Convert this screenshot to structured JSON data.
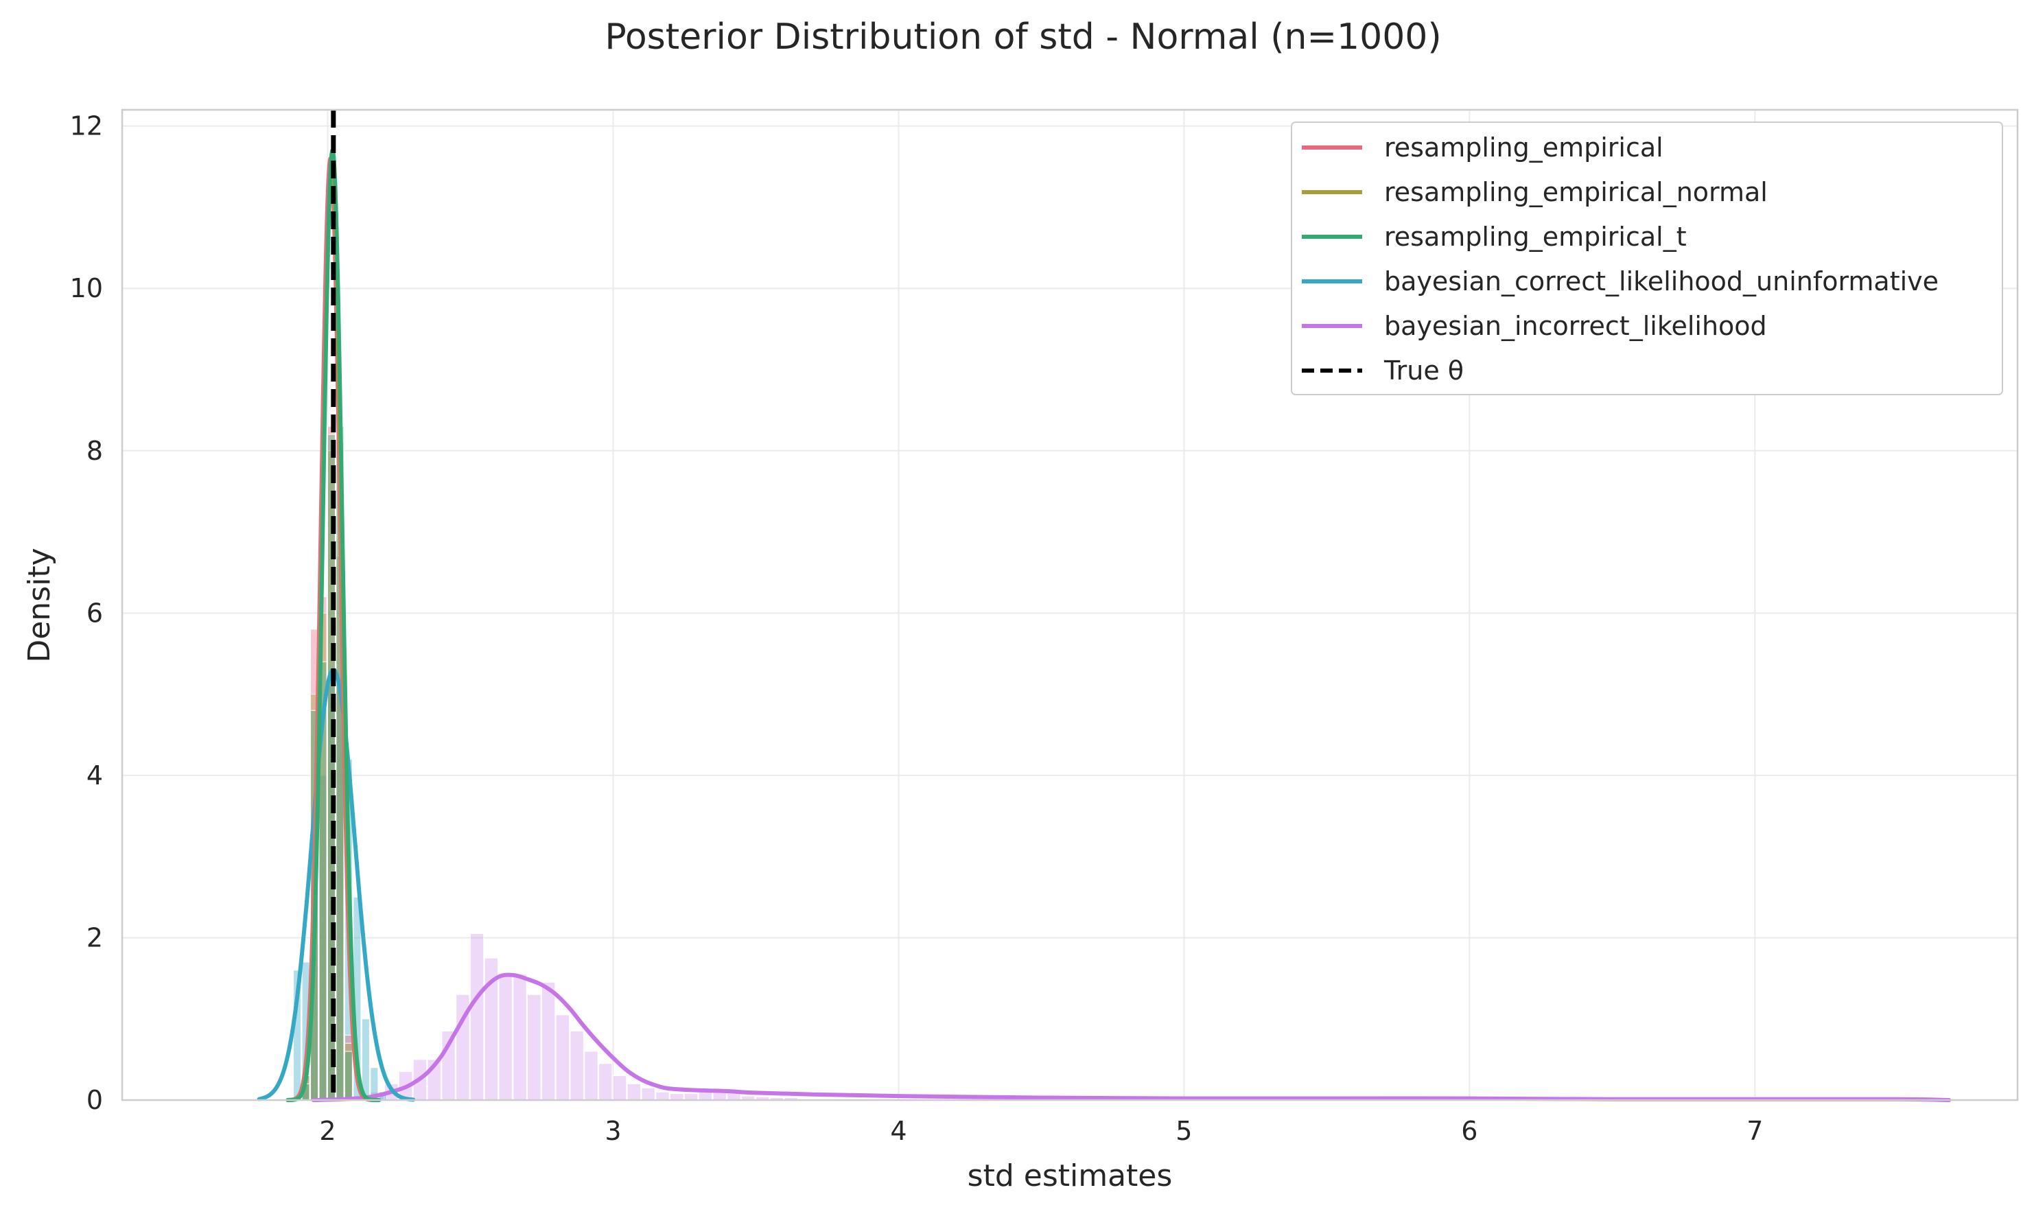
{
  "chart_data": {
    "type": "area",
    "title": "Posterior Distribution of std - Normal (n=1000)",
    "xlabel": "std estimates",
    "ylabel": "Density",
    "xlim": [
      1.28,
      7.92
    ],
    "ylim": [
      0,
      12.2
    ],
    "x_ticks": [
      2,
      3,
      4,
      5,
      6,
      7
    ],
    "y_ticks": [
      0,
      2,
      4,
      6,
      8,
      10,
      12
    ],
    "grid": true,
    "legend_position": "top-right",
    "true_value": 2.02,
    "series": [
      {
        "name": "resampling_empirical",
        "color": "#e8697f",
        "kde": {
          "type": "gaussian",
          "mean": 2.01,
          "sd": 0.034,
          "peak": 11.6,
          "range": [
            1.86,
            2.16
          ]
        },
        "histogram": {
          "bin_width": 0.03,
          "bins": [
            [
              1.91,
              0.3
            ],
            [
              1.94,
              5.8
            ],
            [
              1.97,
              6.2
            ],
            [
              2.0,
              8.3
            ],
            [
              2.03,
              6.7
            ],
            [
              2.06,
              0.8
            ]
          ]
        }
      },
      {
        "name": "resampling_empirical_normal",
        "color": "#a89d38",
        "kde": {
          "type": "gaussian",
          "mean": 2.015,
          "sd": 0.034,
          "peak": 11.5,
          "range": [
            1.86,
            2.17
          ]
        },
        "histogram": {
          "bin_width": 0.03,
          "bins": [
            [
              1.91,
              0.3
            ],
            [
              1.94,
              5.0
            ],
            [
              1.97,
              6.0
            ],
            [
              2.0,
              8.0
            ],
            [
              2.03,
              8.1
            ],
            [
              2.06,
              0.7
            ]
          ]
        }
      },
      {
        "name": "resampling_empirical_t",
        "color": "#33aa73",
        "kde": {
          "type": "gaussian",
          "mean": 2.017,
          "sd": 0.034,
          "peak": 11.7,
          "range": [
            1.86,
            2.18
          ]
        },
        "histogram": {
          "bin_width": 0.03,
          "bins": [
            [
              1.91,
              0.2
            ],
            [
              1.94,
              4.8
            ],
            [
              1.97,
              5.4
            ],
            [
              2.0,
              8.2
            ],
            [
              2.03,
              8.3
            ],
            [
              2.06,
              0.6
            ]
          ]
        }
      },
      {
        "name": "bayesian_correct_likelihood_uninformative",
        "color": "#35a8c6",
        "kde": {
          "type": "gaussian",
          "mean": 2.02,
          "sd": 0.075,
          "peak": 5.3,
          "range": [
            1.76,
            2.3
          ]
        },
        "histogram": {
          "bin_width": 0.03,
          "bins": [
            [
              1.88,
              1.6
            ],
            [
              1.91,
              1.7
            ],
            [
              1.94,
              2.6
            ],
            [
              1.97,
              4.0
            ],
            [
              2.0,
              5.1
            ],
            [
              2.03,
              5.2
            ],
            [
              2.06,
              4.2
            ],
            [
              2.09,
              2.5
            ],
            [
              2.12,
              1.0
            ],
            [
              2.15,
              0.4
            ],
            [
              2.18,
              0.1
            ]
          ]
        }
      },
      {
        "name": "bayesian_incorrect_likelihood",
        "color": "#c675e8",
        "kde": {
          "type": "points",
          "x": [
            1.95,
            2.05,
            2.15,
            2.25,
            2.3,
            2.35,
            2.4,
            2.45,
            2.5,
            2.55,
            2.6,
            2.65,
            2.7,
            2.75,
            2.8,
            2.85,
            2.9,
            2.95,
            3.0,
            3.05,
            3.1,
            3.15,
            3.2,
            3.3,
            3.4,
            3.5,
            3.7,
            4.0,
            4.5,
            5.0,
            5.5,
            6.0,
            6.5,
            7.0,
            7.5,
            7.68
          ],
          "y": [
            0.0,
            0.01,
            0.04,
            0.13,
            0.21,
            0.34,
            0.55,
            0.85,
            1.15,
            1.38,
            1.52,
            1.54,
            1.49,
            1.42,
            1.3,
            1.12,
            0.9,
            0.7,
            0.52,
            0.36,
            0.25,
            0.18,
            0.14,
            0.12,
            0.11,
            0.09,
            0.07,
            0.05,
            0.03,
            0.02,
            0.02,
            0.02,
            0.01,
            0.01,
            0.01,
            0.0
          ]
        },
        "histogram": {
          "bin_width": 0.05,
          "bins": [
            [
              2.15,
              0.1
            ],
            [
              2.2,
              0.2
            ],
            [
              2.25,
              0.35
            ],
            [
              2.3,
              0.5
            ],
            [
              2.35,
              0.5
            ],
            [
              2.4,
              0.85
            ],
            [
              2.45,
              1.3
            ],
            [
              2.5,
              2.05
            ],
            [
              2.55,
              1.75
            ],
            [
              2.6,
              1.55
            ],
            [
              2.65,
              1.55
            ],
            [
              2.7,
              1.3
            ],
            [
              2.75,
              1.45
            ],
            [
              2.8,
              1.05
            ],
            [
              2.85,
              0.85
            ],
            [
              2.9,
              0.6
            ],
            [
              2.95,
              0.45
            ],
            [
              3.0,
              0.3
            ],
            [
              3.05,
              0.2
            ],
            [
              3.1,
              0.15
            ],
            [
              3.15,
              0.1
            ],
            [
              3.2,
              0.08
            ],
            [
              3.25,
              0.08
            ],
            [
              3.3,
              0.1
            ],
            [
              3.35,
              0.1
            ],
            [
              3.4,
              0.12
            ],
            [
              3.45,
              0.05
            ],
            [
              3.5,
              0.04
            ],
            [
              3.55,
              0.03
            ],
            [
              3.6,
              0.03
            ]
          ]
        }
      }
    ],
    "reference_line": {
      "name": "True θ",
      "x": 2.02,
      "color": "#000000",
      "style": "dashed"
    }
  }
}
